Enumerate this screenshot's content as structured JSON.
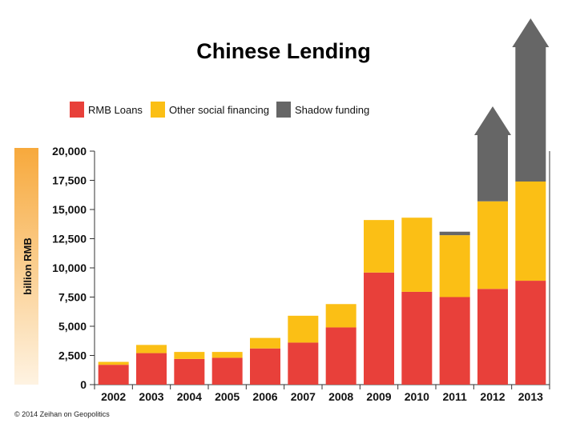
{
  "chart_data": {
    "type": "bar",
    "stacked": true,
    "title": "Chinese Lending",
    "xlabel": "",
    "ylabel": "billion RMB",
    "ylim": [
      0,
      20000
    ],
    "yticks": [
      0,
      2500,
      5000,
      7500,
      10000,
      12500,
      15000,
      17500,
      20000
    ],
    "ytick_labels": [
      "0",
      "2,500",
      "5,000",
      "7,500",
      "10,000",
      "12,500",
      "15,000",
      "17,500",
      "20,000"
    ],
    "categories": [
      "2002",
      "2003",
      "2004",
      "2005",
      "2006",
      "2007",
      "2008",
      "2009",
      "2010",
      "2011",
      "2012",
      "2013"
    ],
    "series": [
      {
        "name": "RMB Loans",
        "color": "#e8403a",
        "values": [
          1700,
          2700,
          2200,
          2300,
          3100,
          3600,
          4900,
          9600,
          7950,
          7500,
          8200,
          8900
        ]
      },
      {
        "name": "Other social financing",
        "color": "#fbbf15",
        "values": [
          250,
          700,
          600,
          500,
          900,
          2300,
          2000,
          4500,
          6350,
          5300,
          7500,
          8500
        ]
      },
      {
        "name": "Shadow funding",
        "color": "#666666",
        "values": [
          0,
          0,
          0,
          0,
          0,
          0,
          0,
          0,
          0,
          300,
          null,
          null
        ]
      }
    ],
    "shadow_arrows": {
      "series": "Shadow funding",
      "categories": [
        "2012",
        "2013"
      ],
      "note": "open-ended, extends beyond axis"
    },
    "legend_position": "top-left",
    "grid": false
  },
  "footer": {
    "copyright": "© 2014 Zeihan on Geopolitics"
  }
}
